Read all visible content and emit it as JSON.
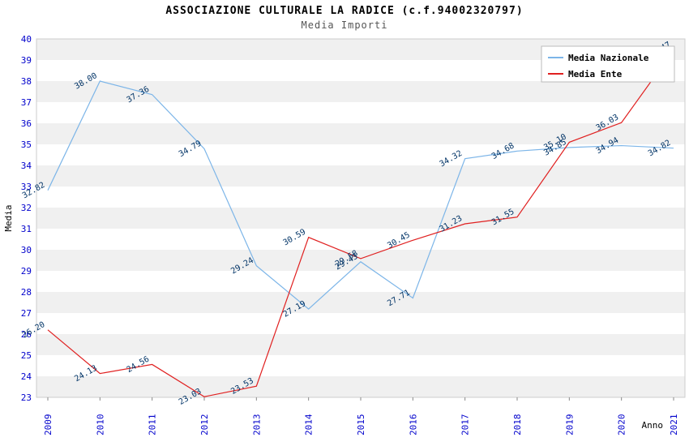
{
  "chart_data": {
    "type": "line",
    "title": "ASSOCIAZIONE CULTURALE LA RADICE (c.f.94002320797)",
    "subtitle": "Media Importi",
    "xlabel": "Anno",
    "ylabel": "Media",
    "x": [
      2009,
      2010,
      2011,
      2012,
      2013,
      2014,
      2015,
      2016,
      2017,
      2018,
      2019,
      2020,
      2021
    ],
    "ylim": [
      23,
      40
    ],
    "ytick_step": 1,
    "grid": "alternating-horizontal-bands",
    "legend_position": "top-right",
    "series": [
      {
        "name": "Media Nazionale",
        "color": "#7CB5E8",
        "values": [
          32.82,
          38.0,
          37.36,
          34.79,
          29.24,
          27.19,
          29.43,
          27.71,
          34.32,
          34.68,
          34.85,
          34.94,
          34.82
        ]
      },
      {
        "name": "Media Ente",
        "color": "#E02020",
        "values": [
          26.2,
          24.13,
          24.56,
          23.03,
          23.53,
          30.59,
          29.58,
          30.45,
          31.23,
          31.55,
          35.1,
          36.03,
          39.47
        ]
      }
    ],
    "colors": {
      "band": "#f0f0f0",
      "plot_background": "#ffffff",
      "frame": "#cccccc",
      "axis_labels": "#0000CC",
      "point_labels": "#003366",
      "tick": "#888888"
    }
  }
}
